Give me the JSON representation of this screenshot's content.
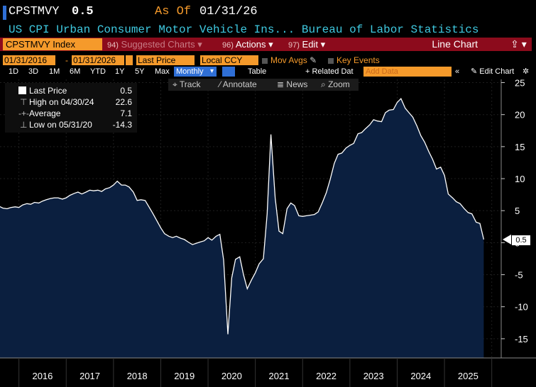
{
  "header": {
    "ticker": "CPSTMVY",
    "last_value": "0.5",
    "as_of_label": "As Of",
    "as_of_date": "01/31/26",
    "subtitle": "US CPI Urban Consumer Motor Vehicle Ins... Bureau of Labor Statistics"
  },
  "toolbar": {
    "security": "CPSTMVY Index",
    "suggested_num": "94)",
    "suggested": "Suggested Charts",
    "actions_num": "96)",
    "actions": "Actions",
    "edit_num": "97)",
    "edit": "Edit",
    "chart_type": "Line Chart",
    "share_icon": "share-icon"
  },
  "fields": {
    "start_date": "01/31/2016",
    "date_sep": "-",
    "end_date": "01/31/2026",
    "price_field": "Last Price",
    "currency": "Local CCY",
    "mov_avgs": "Mov Avgs",
    "key_events": "Key Events"
  },
  "periods": {
    "items": [
      "1D",
      "3D",
      "1M",
      "6M",
      "YTD",
      "1Y",
      "5Y",
      "Max"
    ],
    "frequency": "Monthly",
    "table": "Table",
    "related_data": "Related Dat",
    "add_data_placeholder": "Add Data",
    "edit_chart": "Edit Chart"
  },
  "tools": {
    "track": "Track",
    "annotate": "Annotate",
    "news": "News",
    "zoom": "Zoom"
  },
  "legend": {
    "last_label": "Last Price",
    "last_value": "0.5",
    "high_label": "High on 04/30/24",
    "high_value": "22.6",
    "avg_label": "Average",
    "avg_value": "7.1",
    "low_label": "Low on 05/31/20",
    "low_value": "-14.3"
  },
  "colors": {
    "background": "#000000",
    "area_fill": "#0b1f3f",
    "line": "#ffffff",
    "accent_orange": "#f59a2b",
    "toolbar_red": "#8c0b1c",
    "subtitle_cyan": "#3fc9e0"
  },
  "chart_data": {
    "type": "area",
    "title": "US CPI Urban Consumer Motor Vehicle Ins... Bureau of Labor Statistics",
    "xlabel": "",
    "ylabel": "",
    "frequency": "Monthly",
    "x_ticks": [
      "2016",
      "2017",
      "2018",
      "2019",
      "2020",
      "2021",
      "2022",
      "2023",
      "2024",
      "2025"
    ],
    "y_ticks": [
      25,
      20,
      15,
      10,
      5,
      0,
      -5,
      -10,
      -15
    ],
    "ylim": [
      -18,
      25.5
    ],
    "xlim": [
      2015.6,
      2026.2
    ],
    "last_price_tag": "0.5",
    "series": [
      {
        "name": "CPSTMVY Index",
        "points": [
          [
            2015.58,
            5.7
          ],
          [
            2015.66,
            5.4
          ],
          [
            2015.75,
            5.3
          ],
          [
            2015.83,
            5.5
          ],
          [
            2015.92,
            5.6
          ],
          [
            2016.0,
            5.5
          ],
          [
            2016.08,
            5.9
          ],
          [
            2016.17,
            6.1
          ],
          [
            2016.25,
            6.0
          ],
          [
            2016.33,
            6.3
          ],
          [
            2016.42,
            6.2
          ],
          [
            2016.5,
            6.5
          ],
          [
            2016.58,
            6.7
          ],
          [
            2016.67,
            6.9
          ],
          [
            2016.75,
            7.0
          ],
          [
            2016.83,
            7.0
          ],
          [
            2016.92,
            6.8
          ],
          [
            2017.0,
            7.0
          ],
          [
            2017.08,
            7.4
          ],
          [
            2017.17,
            7.7
          ],
          [
            2017.25,
            7.9
          ],
          [
            2017.33,
            7.6
          ],
          [
            2017.42,
            7.9
          ],
          [
            2017.5,
            8.2
          ],
          [
            2017.58,
            8.1
          ],
          [
            2017.67,
            8.2
          ],
          [
            2017.75,
            8.0
          ],
          [
            2017.83,
            8.4
          ],
          [
            2017.92,
            8.6
          ],
          [
            2018.0,
            9.0
          ],
          [
            2018.08,
            9.6
          ],
          [
            2018.17,
            9.0
          ],
          [
            2018.25,
            9.0
          ],
          [
            2018.33,
            8.7
          ],
          [
            2018.42,
            7.9
          ],
          [
            2018.5,
            6.6
          ],
          [
            2018.58,
            6.7
          ],
          [
            2018.67,
            6.6
          ],
          [
            2018.75,
            5.6
          ],
          [
            2018.83,
            4.6
          ],
          [
            2018.92,
            3.4
          ],
          [
            2019.0,
            2.3
          ],
          [
            2019.08,
            1.4
          ],
          [
            2019.17,
            1.0
          ],
          [
            2019.25,
            0.8
          ],
          [
            2019.33,
            1.0
          ],
          [
            2019.42,
            0.7
          ],
          [
            2019.5,
            0.5
          ],
          [
            2019.58,
            0.1
          ],
          [
            2019.67,
            -0.3
          ],
          [
            2019.75,
            -0.1
          ],
          [
            2019.83,
            0.1
          ],
          [
            2019.92,
            0.3
          ],
          [
            2020.0,
            0.8
          ],
          [
            2020.08,
            0.4
          ],
          [
            2020.17,
            1.0
          ],
          [
            2020.25,
            1.3
          ],
          [
            2020.33,
            -2.7
          ],
          [
            2020.42,
            -14.3
          ],
          [
            2020.5,
            -5.5
          ],
          [
            2020.58,
            -2.6
          ],
          [
            2020.67,
            -2.2
          ],
          [
            2020.75,
            -5.0
          ],
          [
            2020.83,
            -7.2
          ],
          [
            2020.92,
            -5.8
          ],
          [
            2021.0,
            -4.7
          ],
          [
            2021.08,
            -3.3
          ],
          [
            2021.17,
            -2.5
          ],
          [
            2021.25,
            4.5
          ],
          [
            2021.33,
            16.9
          ],
          [
            2021.42,
            7.0
          ],
          [
            2021.5,
            1.8
          ],
          [
            2021.58,
            1.4
          ],
          [
            2021.67,
            5.3
          ],
          [
            2021.75,
            6.2
          ],
          [
            2021.83,
            5.8
          ],
          [
            2021.92,
            4.2
          ],
          [
            2022.0,
            4.1
          ],
          [
            2022.08,
            4.2
          ],
          [
            2022.17,
            4.3
          ],
          [
            2022.25,
            4.4
          ],
          [
            2022.33,
            4.8
          ],
          [
            2022.42,
            6.3
          ],
          [
            2022.5,
            7.8
          ],
          [
            2022.58,
            9.8
          ],
          [
            2022.67,
            12.4
          ],
          [
            2022.75,
            13.8
          ],
          [
            2022.83,
            14.0
          ],
          [
            2022.92,
            14.8
          ],
          [
            2023.0,
            15.2
          ],
          [
            2023.08,
            15.5
          ],
          [
            2023.17,
            17.0
          ],
          [
            2023.25,
            17.2
          ],
          [
            2023.33,
            17.8
          ],
          [
            2023.42,
            18.4
          ],
          [
            2023.5,
            19.2
          ],
          [
            2023.58,
            19.0
          ],
          [
            2023.67,
            18.9
          ],
          [
            2023.75,
            20.3
          ],
          [
            2023.83,
            20.7
          ],
          [
            2023.92,
            20.8
          ],
          [
            2024.0,
            21.9
          ],
          [
            2024.08,
            22.5
          ],
          [
            2024.17,
            21.0
          ],
          [
            2024.25,
            20.3
          ],
          [
            2024.33,
            19.6
          ],
          [
            2024.42,
            18.2
          ],
          [
            2024.5,
            16.7
          ],
          [
            2024.58,
            15.7
          ],
          [
            2024.67,
            14.2
          ],
          [
            2024.75,
            13.0
          ],
          [
            2024.83,
            11.5
          ],
          [
            2024.92,
            11.8
          ],
          [
            2025.0,
            10.5
          ],
          [
            2025.08,
            7.6
          ],
          [
            2025.17,
            7.0
          ],
          [
            2025.25,
            6.4
          ],
          [
            2025.33,
            6.1
          ],
          [
            2025.42,
            5.3
          ],
          [
            2025.5,
            4.7
          ],
          [
            2025.58,
            4.5
          ],
          [
            2025.67,
            3.2
          ],
          [
            2025.75,
            3.0
          ],
          [
            2025.83,
            0.5
          ]
        ]
      }
    ]
  }
}
